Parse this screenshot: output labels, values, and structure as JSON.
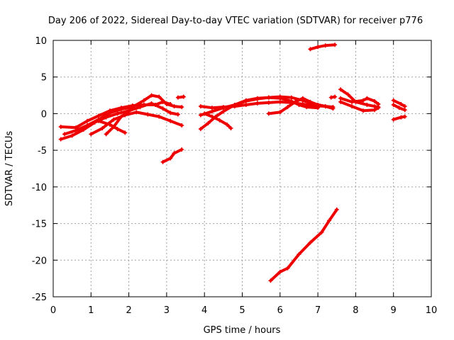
{
  "chart_data": {
    "type": "scatter",
    "title": "Day 206 of 2022, Sidereal Day-to-day VTEC variation (SDTVAR) for receiver p776",
    "xlabel": "GPS time / hours",
    "ylabel": "SDTVAR / TECUs",
    "xlim": [
      0,
      10
    ],
    "ylim": [
      -25,
      10
    ],
    "xticks": [
      "0",
      "1",
      "2",
      "3",
      "4",
      "5",
      "6",
      "7",
      "8",
      "9",
      "10"
    ],
    "yticks": [
      "10",
      "5",
      "0",
      "-5",
      "-10",
      "-15",
      "-20",
      "-25"
    ],
    "grid": true,
    "marker": "plus",
    "color": "#ee0000",
    "series": [
      {
        "points": [
          [
            0.2,
            -3.5
          ],
          [
            0.5,
            -3.0
          ],
          [
            0.8,
            -2.2
          ],
          [
            1.1,
            -1.2
          ],
          [
            1.4,
            -0.5
          ],
          [
            1.7,
            0.0
          ],
          [
            2.0,
            0.4
          ],
          [
            2.3,
            0.9
          ],
          [
            2.6,
            1.4
          ],
          [
            2.9,
            0.7
          ],
          [
            3.1,
            0.1
          ],
          [
            3.3,
            -0.1
          ]
        ]
      },
      {
        "points": [
          [
            0.3,
            -2.8
          ],
          [
            0.6,
            -2.3
          ],
          [
            0.9,
            -1.6
          ],
          [
            1.2,
            -0.8
          ],
          [
            1.5,
            0.1
          ],
          [
            1.8,
            0.6
          ],
          [
            2.1,
            0.9
          ],
          [
            2.4,
            1.8
          ],
          [
            2.6,
            2.5
          ],
          [
            2.8,
            2.3
          ],
          [
            3.0,
            1.3
          ],
          [
            3.2,
            1.0
          ],
          [
            3.4,
            0.9
          ]
        ]
      },
      {
        "points": [
          [
            0.2,
            -1.8
          ],
          [
            0.6,
            -1.9
          ],
          [
            0.9,
            -1.0
          ],
          [
            1.2,
            -0.3
          ],
          [
            1.5,
            0.4
          ],
          [
            1.8,
            0.8
          ],
          [
            2.1,
            1.1
          ],
          [
            2.4,
            1.2
          ],
          [
            2.7,
            1.2
          ],
          [
            2.9,
            1.6
          ],
          [
            3.1,
            1.3
          ]
        ]
      },
      {
        "points": [
          [
            1.0,
            -2.8
          ],
          [
            1.3,
            -2.0
          ],
          [
            1.6,
            -0.8
          ],
          [
            1.9,
            -0.2
          ],
          [
            2.2,
            0.2
          ],
          [
            2.5,
            -0.1
          ],
          [
            2.8,
            -0.4
          ],
          [
            3.1,
            -1.0
          ],
          [
            3.4,
            -1.6
          ]
        ]
      },
      {
        "points": [
          [
            1.2,
            -1.0
          ],
          [
            1.5,
            -1.5
          ],
          [
            1.7,
            -2.1
          ],
          [
            1.9,
            -2.6
          ]
        ]
      },
      {
        "points": [
          [
            1.4,
            -2.8
          ],
          [
            1.6,
            -1.8
          ],
          [
            1.8,
            -0.4
          ],
          [
            2.0,
            0.3
          ]
        ]
      },
      {
        "points": [
          [
            3.3,
            2.2
          ],
          [
            3.45,
            2.3
          ]
        ]
      },
      {
        "points": [
          [
            2.9,
            -6.6
          ],
          [
            3.1,
            -6.1
          ],
          [
            3.2,
            -5.4
          ],
          [
            3.4,
            -4.9
          ]
        ]
      },
      {
        "points": [
          [
            3.9,
            -0.2
          ],
          [
            4.2,
            0.3
          ],
          [
            4.5,
            0.8
          ],
          [
            4.8,
            1.2
          ],
          [
            5.1,
            1.7
          ],
          [
            5.4,
            2.0
          ],
          [
            5.7,
            2.2
          ],
          [
            6.0,
            2.3
          ],
          [
            6.3,
            2.2
          ],
          [
            6.6,
            1.8
          ],
          [
            6.9,
            1.3
          ],
          [
            7.2,
            1.0
          ],
          [
            7.4,
            0.9
          ]
        ]
      },
      {
        "points": [
          [
            3.9,
            1.0
          ],
          [
            4.2,
            0.8
          ],
          [
            4.5,
            0.9
          ],
          [
            4.8,
            1.0
          ],
          [
            5.1,
            1.2
          ],
          [
            5.4,
            1.4
          ],
          [
            5.7,
            1.5
          ],
          [
            6.0,
            1.6
          ],
          [
            6.3,
            1.5
          ],
          [
            6.6,
            1.3
          ],
          [
            6.9,
            1.1
          ],
          [
            7.2,
            1.0
          ],
          [
            7.4,
            0.7
          ]
        ]
      },
      {
        "points": [
          [
            3.9,
            -2.1
          ],
          [
            4.1,
            -1.3
          ],
          [
            4.3,
            -0.4
          ],
          [
            4.5,
            0.3
          ],
          [
            4.8,
            1.2
          ],
          [
            5.1,
            1.8
          ],
          [
            5.4,
            2.1
          ],
          [
            5.7,
            2.2
          ],
          [
            6.0,
            2.1
          ],
          [
            6.3,
            1.7
          ],
          [
            6.5,
            1.2
          ],
          [
            6.7,
            0.9
          ],
          [
            7.0,
            0.8
          ]
        ]
      },
      {
        "points": [
          [
            4.0,
            0.0
          ],
          [
            4.2,
            -0.4
          ],
          [
            4.4,
            -0.9
          ],
          [
            4.6,
            -1.5
          ],
          [
            4.7,
            -2.0
          ]
        ]
      },
      {
        "points": [
          [
            5.7,
            0.0
          ],
          [
            6.0,
            0.2
          ],
          [
            6.2,
            0.9
          ],
          [
            6.4,
            1.6
          ],
          [
            6.6,
            2.1
          ],
          [
            6.8,
            1.6
          ],
          [
            7.0,
            1.2
          ],
          [
            7.2,
            1.0
          ]
        ]
      },
      {
        "points": [
          [
            7.35,
            2.2
          ],
          [
            7.45,
            2.3
          ]
        ]
      },
      {
        "points": [
          [
            6.8,
            8.8
          ],
          [
            7.0,
            9.1
          ],
          [
            7.2,
            9.3
          ],
          [
            7.45,
            9.4
          ]
        ]
      },
      {
        "points": [
          [
            5.75,
            -22.8
          ],
          [
            6.0,
            -21.6
          ],
          [
            6.2,
            -21.1
          ],
          [
            6.5,
            -19.2
          ],
          [
            6.8,
            -17.6
          ],
          [
            7.1,
            -16.2
          ],
          [
            7.3,
            -14.6
          ],
          [
            7.5,
            -13.1
          ]
        ]
      },
      {
        "points": [
          [
            7.6,
            3.3
          ],
          [
            7.8,
            2.6
          ],
          [
            8.0,
            1.6
          ],
          [
            8.3,
            1.2
          ],
          [
            8.5,
            1.0
          ],
          [
            8.6,
            0.9
          ]
        ]
      },
      {
        "points": [
          [
            7.6,
            1.6
          ],
          [
            7.9,
            1.0
          ],
          [
            8.2,
            0.4
          ],
          [
            8.5,
            0.5
          ],
          [
            8.6,
            0.8
          ]
        ]
      },
      {
        "points": [
          [
            7.6,
            2.1
          ],
          [
            7.9,
            1.6
          ],
          [
            8.2,
            1.8
          ],
          [
            8.3,
            2.1
          ],
          [
            8.5,
            1.7
          ],
          [
            8.6,
            1.3
          ]
        ]
      },
      {
        "points": [
          [
            9.0,
            1.2
          ],
          [
            9.15,
            0.8
          ],
          [
            9.3,
            0.5
          ]
        ]
      },
      {
        "points": [
          [
            9.0,
            1.8
          ],
          [
            9.2,
            1.3
          ],
          [
            9.3,
            1.0
          ]
        ]
      },
      {
        "points": [
          [
            9.0,
            -0.8
          ],
          [
            9.2,
            -0.5
          ],
          [
            9.3,
            -0.4
          ]
        ]
      }
    ]
  }
}
